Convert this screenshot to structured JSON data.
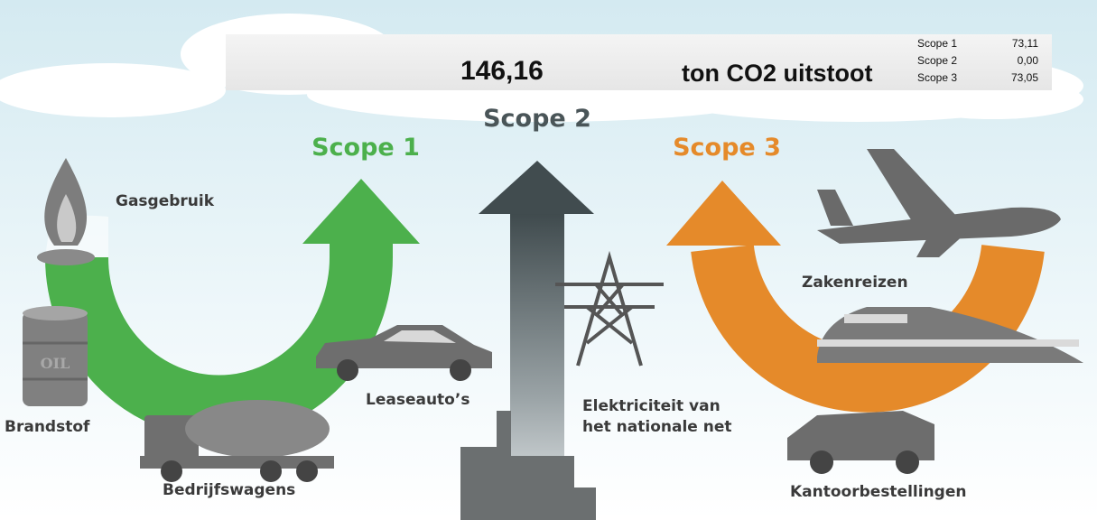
{
  "header": {
    "total": "146,16",
    "unit": "ton CO2 uitstoot",
    "breakdown": [
      {
        "label": "Scope 1",
        "value": "73,11"
      },
      {
        "label": "Scope 2",
        "value": "0,00"
      },
      {
        "label": "Scope 3",
        "value": "73,05"
      }
    ]
  },
  "scopes": [
    {
      "title": "Scope 1",
      "sources": [
        "Gasgebruik",
        "Brandstof",
        "Bedrijfswagens",
        "Leaseauto’s"
      ]
    },
    {
      "title": "Scope 2",
      "sources": [
        [
          "Elektriciteit van",
          "het nationale net"
        ]
      ]
    },
    {
      "title": "Scope 3",
      "sources": [
        "Zakenreizen",
        "Kantoorbestellingen"
      ]
    }
  ],
  "oil_label": "OIL"
}
